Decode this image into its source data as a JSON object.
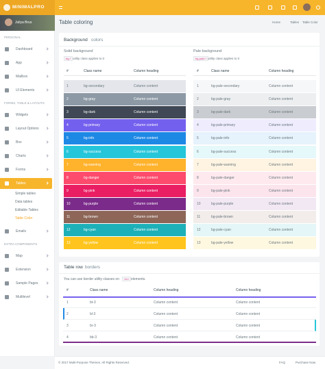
{
  "header": {
    "logo": "MINIMALPRO"
  },
  "sidebar": {
    "user": "Juliya Brus",
    "sections": [
      {
        "title": "PERSONAL",
        "items": [
          {
            "label": "Dashboard"
          },
          {
            "label": "App"
          },
          {
            "label": "Mailbox"
          },
          {
            "label": "UI Elements"
          }
        ]
      },
      {
        "title": "FORMS, TABLE & LAYOUTS",
        "items": [
          {
            "label": "Widgets"
          },
          {
            "label": "Layout Options"
          },
          {
            "label": "Box"
          },
          {
            "label": "Charts"
          },
          {
            "label": "Forms"
          },
          {
            "label": "Tables",
            "active": true,
            "children": [
              "Simple tables",
              "Data tables",
              "Editable Tables",
              "Table Color"
            ]
          },
          {
            "label": "Emails"
          }
        ]
      },
      {
        "title": "EXTRA COMPONENTS",
        "items": [
          {
            "label": "Map"
          },
          {
            "label": "Extension"
          },
          {
            "label": "Sample Pages"
          },
          {
            "label": "Multilevel"
          }
        ]
      }
    ]
  },
  "page": {
    "title": "Table coloring",
    "breadcrumb": [
      "Home",
      "Tables",
      "Table Color"
    ]
  },
  "card1": {
    "title": "Background",
    "title_accent": "colors",
    "solid": {
      "title": "Solid background",
      "note_code": "bg-*",
      "note": "utility class applies to tr",
      "headers": [
        "#",
        "Class name",
        "Column heading"
      ],
      "rows": [
        {
          "num": "1",
          "cls": "bg-secondary",
          "content": "Column content",
          "color": "#e4e6eb",
          "text": "#67757c"
        },
        {
          "num": "2",
          "cls": "bg-gray",
          "content": "Column content",
          "color": "#8d9aa6",
          "text": "#ffffff"
        },
        {
          "num": "3",
          "cls": "bg-dark",
          "content": "Column content",
          "color": "#3f4854",
          "text": "#ffffff"
        },
        {
          "num": "4",
          "cls": "bg-primary",
          "content": "Column content",
          "color": "#7460ee",
          "text": "#ffffff"
        },
        {
          "num": "5",
          "cls": "bg-info",
          "content": "Column content",
          "color": "#1e88e5",
          "text": "#ffffff"
        },
        {
          "num": "6",
          "cls": "bg-success",
          "content": "Column content",
          "color": "#26c6da",
          "text": "#ffffff"
        },
        {
          "num": "7",
          "cls": "bg-warning",
          "content": "Column content",
          "color": "#ffb22b",
          "text": "#ffffff"
        },
        {
          "num": "8",
          "cls": "bg-danger",
          "content": "Column content",
          "color": "#fc4b6c",
          "text": "#ffffff"
        },
        {
          "num": "9",
          "cls": "bg-pink",
          "content": "Column content",
          "color": "#e91e63",
          "text": "#ffffff"
        },
        {
          "num": "10",
          "cls": "bg-purple",
          "content": "Column content",
          "color": "#7b2b8a",
          "text": "#ffffff"
        },
        {
          "num": "11",
          "cls": "bg-brown",
          "content": "Column content",
          "color": "#8d6658",
          "text": "#ffffff"
        },
        {
          "num": "12",
          "cls": "bg-cyan",
          "content": "Column content",
          "color": "#1eb0b8",
          "text": "#ffffff"
        },
        {
          "num": "13",
          "cls": "bg-yellow",
          "content": "Column content",
          "color": "#ffc51e",
          "text": "#ffffff"
        }
      ]
    },
    "pale": {
      "title": "Pale background",
      "note_code": "bg-pale-*",
      "note": "utility class applies to tr",
      "headers": [
        "#",
        "Class name",
        "Column heading"
      ],
      "rows": [
        {
          "num": "1",
          "cls": "bg-pale-secondary",
          "content": "Column content",
          "color": "#f6f7f9",
          "text": "#67757c"
        },
        {
          "num": "2",
          "cls": "bg-pale-gray",
          "content": "Column content",
          "color": "#eceef0",
          "text": "#67757c"
        },
        {
          "num": "3",
          "cls": "bg-pale-dark",
          "content": "Column content",
          "color": "#c9ccd0",
          "text": "#67757c"
        },
        {
          "num": "4",
          "cls": "bg-pale-primary",
          "content": "Column content",
          "color": "#eeecfd",
          "text": "#67757c"
        },
        {
          "num": "5",
          "cls": "bg-pale-info",
          "content": "Column content",
          "color": "#e6f2fc",
          "text": "#67757c"
        },
        {
          "num": "6",
          "cls": "bg-pale-success",
          "content": "Column content",
          "color": "#e5f8fa",
          "text": "#67757c"
        },
        {
          "num": "7",
          "cls": "bg-pale-warning",
          "content": "Column content",
          "color": "#fff4e2",
          "text": "#67757c"
        },
        {
          "num": "8",
          "cls": "bg-pale-danger",
          "content": "Column content",
          "color": "#feeaee",
          "text": "#67757c"
        },
        {
          "num": "9",
          "cls": "bg-pale-pink",
          "content": "Column content",
          "color": "#fce4ec",
          "text": "#67757c"
        },
        {
          "num": "10",
          "cls": "bg-pale-purple",
          "content": "Column content",
          "color": "#f2e8f4",
          "text": "#67757c"
        },
        {
          "num": "11",
          "cls": "bg-pale-brown",
          "content": "Column content",
          "color": "#f2ecea",
          "text": "#67757c"
        },
        {
          "num": "12",
          "cls": "bg-pale-cyan",
          "content": "Column content",
          "color": "#e4f6f7",
          "text": "#67757c"
        },
        {
          "num": "13",
          "cls": "bg-pale-yellow",
          "content": "Column content",
          "color": "#fff8e1",
          "text": "#67757c"
        }
      ]
    }
  },
  "card2": {
    "title": "Table row",
    "title_accent": "borders",
    "note": "You can use border utility classes on",
    "note_code": "<tr>",
    "note_end": "elements.",
    "headers": [
      "#",
      "Class name",
      "Column heading",
      "Column heading"
    ],
    "rows": [
      {
        "num": "1",
        "cls": "bt-3",
        "c1": "Column content",
        "c2": "Column content",
        "border": "top",
        "color": "#7460ee"
      },
      {
        "num": "2",
        "cls": "bl-3",
        "c1": "Column content",
        "c2": "Column content",
        "border": "left",
        "color": "#1e88e5"
      },
      {
        "num": "3",
        "cls": "br-3",
        "c1": "Column content",
        "c2": "Column content",
        "border": "right",
        "color": "#26c6da"
      },
      {
        "num": "4",
        "cls": "bb-3",
        "c1": "Column content",
        "c2": "Column content",
        "border": "bottom",
        "color": "#fc4b6c"
      }
    ]
  },
  "footer": {
    "copyright": "© 2017 Multi-Purpose Themes. All Rights Reserved.",
    "links": [
      "FAQ",
      "Purchase Now"
    ]
  }
}
